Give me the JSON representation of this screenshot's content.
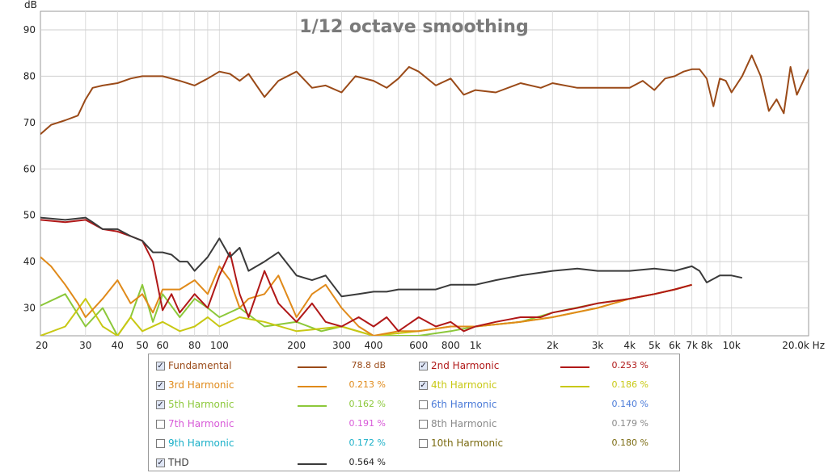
{
  "chart_data": {
    "type": "line",
    "title": "1/12 octave smoothing",
    "ylabel": "dB",
    "xunit": "Hz",
    "xscale": "log",
    "xlim": [
      20,
      20000
    ],
    "ylim": [
      24,
      94
    ],
    "grid": true,
    "y_ticks": [
      "30",
      "40",
      "50",
      "60",
      "70",
      "80",
      "90"
    ],
    "x_ticks": [
      {
        "v": 20,
        "t": "20"
      },
      {
        "v": 30,
        "t": "30"
      },
      {
        "v": 40,
        "t": "40"
      },
      {
        "v": 50,
        "t": "50"
      },
      {
        "v": 60,
        "t": "60"
      },
      {
        "v": 80,
        "t": "80"
      },
      {
        "v": 100,
        "t": "100"
      },
      {
        "v": 200,
        "t": "200"
      },
      {
        "v": 300,
        "t": "300"
      },
      {
        "v": 400,
        "t": "400"
      },
      {
        "v": 600,
        "t": "600"
      },
      {
        "v": 800,
        "t": "800"
      },
      {
        "v": 1000,
        "t": "1k"
      },
      {
        "v": 2000,
        "t": "2k"
      },
      {
        "v": 3000,
        "t": "3k"
      },
      {
        "v": 4000,
        "t": "4k"
      },
      {
        "v": 5000,
        "t": "5k"
      },
      {
        "v": 6000,
        "t": "6k"
      },
      {
        "v": 7000,
        "t": "7k"
      },
      {
        "v": 8000,
        "t": "8k"
      },
      {
        "v": 10000,
        "t": "10k"
      },
      {
        "v": 20000,
        "t": "20.0k Hz"
      }
    ],
    "series": [
      {
        "name": "Fundamental",
        "color": "#9a4a18",
        "x": [
          20,
          22,
          25,
          28,
          30,
          32,
          35,
          40,
          45,
          50,
          60,
          70,
          80,
          90,
          100,
          110,
          120,
          130,
          150,
          170,
          200,
          230,
          260,
          300,
          340,
          400,
          450,
          500,
          550,
          600,
          700,
          800,
          900,
          1000,
          1200,
          1500,
          1800,
          2000,
          2500,
          3000,
          3500,
          4000,
          4500,
          5000,
          5500,
          6000,
          6500,
          7000,
          7500,
          8000,
          8500,
          9000,
          9500,
          10000,
          11000,
          12000,
          13000,
          14000,
          15000,
          16000,
          17000,
          18000,
          20000
        ],
        "y": [
          67.5,
          69.5,
          70.5,
          71.5,
          75,
          77.5,
          78,
          78.5,
          79.5,
          80,
          80,
          79,
          78,
          79.5,
          81,
          80.5,
          79,
          80.5,
          75.5,
          79,
          81,
          77.5,
          78,
          76.5,
          80,
          79,
          77.5,
          79.5,
          82,
          81,
          78,
          79.5,
          76,
          77,
          76.5,
          78.5,
          77.5,
          78.5,
          77.5,
          77.5,
          77.5,
          77.5,
          79,
          77,
          79.5,
          80,
          81,
          81.5,
          81.5,
          79.5,
          73.5,
          79.5,
          79,
          76.5,
          80,
          84.5,
          80,
          72.5,
          75,
          72,
          82,
          76,
          81.5
        ]
      },
      {
        "name": "2nd Harmonic",
        "color": "#b01818",
        "x": [
          20,
          25,
          30,
          35,
          40,
          45,
          50,
          55,
          60,
          65,
          70,
          80,
          90,
          100,
          110,
          120,
          130,
          150,
          170,
          200,
          230,
          260,
          300,
          350,
          400,
          450,
          500,
          600,
          700,
          800,
          900,
          1000,
          1200,
          1500,
          1800,
          2000,
          2500,
          3000,
          3500,
          4000,
          5000,
          6000,
          7000
        ],
        "y": [
          49,
          48.5,
          49,
          47,
          46.5,
          45.5,
          44.5,
          40,
          29.5,
          33,
          29,
          33,
          30,
          37,
          42,
          33,
          28,
          38,
          31,
          27,
          31,
          27,
          26,
          28,
          26,
          28,
          25,
          28,
          26,
          27,
          25,
          26,
          27,
          28,
          28,
          29,
          30,
          31,
          31.5,
          32,
          33,
          34,
          35
        ]
      },
      {
        "name": "3rd Harmonic",
        "color": "#e08a1a",
        "x": [
          20,
          22,
          25,
          28,
          30,
          35,
          40,
          45,
          50,
          55,
          60,
          70,
          80,
          90,
          100,
          110,
          120,
          130,
          150,
          170,
          200,
          230,
          260,
          300,
          350,
          400,
          500,
          600,
          800,
          1000,
          1500,
          2000,
          3000,
          4000,
          5000,
          6000,
          7000
        ],
        "y": [
          41,
          39,
          35,
          31,
          28,
          32,
          36,
          31,
          33,
          29,
          34,
          34,
          36,
          33,
          39,
          36,
          30,
          32,
          33,
          37,
          28,
          33,
          35,
          30,
          26,
          24,
          25,
          25,
          26,
          26,
          27,
          28,
          30,
          32,
          33,
          34,
          35
        ]
      },
      {
        "name": "4th Harmonic",
        "color": "#c8c814",
        "x": [
          20,
          25,
          30,
          35,
          40,
          45,
          50,
          60,
          70,
          80,
          90,
          100,
          120,
          150,
          200,
          300,
          400,
          600,
          800,
          1000,
          1500,
          2000,
          3000,
          4000,
          5000,
          6000,
          7000
        ],
        "y": [
          24,
          26,
          32,
          26,
          24,
          28,
          25,
          27,
          25,
          26,
          28,
          26,
          28,
          27,
          25,
          26,
          24,
          25,
          26,
          26,
          27,
          28,
          30,
          32,
          33,
          34,
          35
        ]
      },
      {
        "name": "5th Harmonic",
        "color": "#8cc83a",
        "x": [
          20,
          25,
          30,
          35,
          40,
          45,
          50,
          55,
          60,
          70,
          80,
          90,
          100,
          120,
          150,
          200,
          250,
          300,
          400,
          600,
          800,
          1000,
          1500,
          2000,
          3000,
          4000,
          5000,
          6000,
          7000
        ],
        "y": [
          30.5,
          33,
          26,
          30,
          24,
          28,
          35,
          27,
          33,
          28,
          32,
          30,
          28,
          30,
          26,
          27,
          25,
          26,
          24,
          24,
          25,
          26,
          27,
          29,
          31,
          32,
          33,
          34,
          35
        ]
      },
      {
        "name": "THD",
        "color": "#3a3a3a",
        "x": [
          20,
          25,
          30,
          32,
          35,
          40,
          45,
          50,
          55,
          60,
          65,
          70,
          75,
          80,
          90,
          100,
          110,
          120,
          130,
          150,
          170,
          200,
          230,
          260,
          300,
          350,
          400,
          450,
          500,
          600,
          700,
          800,
          900,
          1000,
          1200,
          1500,
          2000,
          2500,
          3000,
          3500,
          4000,
          5000,
          6000,
          7000,
          7500,
          8000,
          9000,
          10000,
          11000
        ],
        "y": [
          49.5,
          49,
          49.5,
          48.5,
          47,
          47,
          45.5,
          44.5,
          42,
          42,
          41.5,
          40,
          40,
          38,
          41,
          45,
          41,
          43,
          38,
          40,
          42,
          37,
          36,
          37,
          32.5,
          33,
          33.5,
          33.5,
          34,
          34,
          34,
          35,
          35,
          35,
          36,
          37,
          38,
          38.5,
          38,
          38,
          38,
          38.5,
          38,
          39,
          38,
          35.5,
          37,
          37,
          36.5
        ]
      }
    ]
  },
  "legend": {
    "items": [
      {
        "label": "Fundamental",
        "value": "78.8 dB",
        "checked": true,
        "color": "#9a4a18"
      },
      {
        "label": "2nd Harmonic",
        "value": "0.253 %",
        "checked": true,
        "color": "#b01818"
      },
      {
        "label": "3rd Harmonic",
        "value": "0.213 %",
        "checked": true,
        "color": "#e08a1a"
      },
      {
        "label": "4th Harmonic",
        "value": "0.186 %",
        "checked": true,
        "color": "#c8c814"
      },
      {
        "label": "5th Harmonic",
        "value": "0.162 %",
        "checked": true,
        "color": "#8cc83a"
      },
      {
        "label": "6th Harmonic",
        "value": "0.140 %",
        "checked": false,
        "color": "#4a7ad8"
      },
      {
        "label": "7th Harmonic",
        "value": "0.191 %",
        "checked": false,
        "color": "#d85ad8"
      },
      {
        "label": "8th Harmonic",
        "value": "0.179 %",
        "checked": false,
        "color": "#8a8a8a"
      },
      {
        "label": "9th Harmonic",
        "value": "0.172 %",
        "checked": false,
        "color": "#1ab0c8"
      },
      {
        "label": "10th Harmonic",
        "value": "0.180 %",
        "checked": false,
        "color": "#7a6a10"
      },
      {
        "label": "THD",
        "value": "0.564 %",
        "checked": true,
        "color": "#3a3a3a"
      }
    ],
    "checkmark": "✓"
  }
}
